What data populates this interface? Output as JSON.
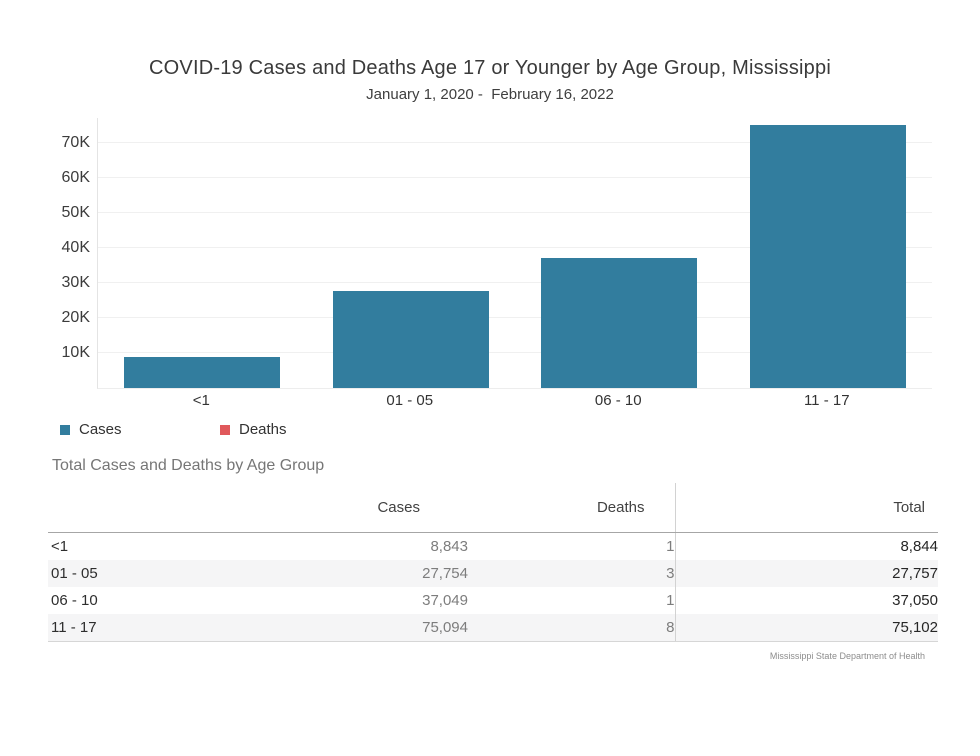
{
  "chart_data": {
    "type": "bar",
    "title": "COVID-19 Cases and Deaths Age 17 or Younger by Age Group, Mississippi",
    "subtitle": "January 1, 2020 -  February 16, 2022",
    "categories": [
      "<1",
      "01 - 05",
      "06 - 10",
      "11 - 17"
    ],
    "series": [
      {
        "name": "Cases",
        "color": "#327D9E",
        "values": [
          8843,
          27754,
          37049,
          75094
        ]
      },
      {
        "name": "Deaths",
        "color": "#E0585B",
        "values": [
          1,
          3,
          1,
          8
        ]
      }
    ],
    "stacked": true,
    "xlabel": "",
    "ylabel": "",
    "ylim": [
      0,
      77000
    ],
    "yticks": [
      {
        "value": 10000,
        "label": "10K"
      },
      {
        "value": 20000,
        "label": "20K"
      },
      {
        "value": 30000,
        "label": "30K"
      },
      {
        "value": 40000,
        "label": "40K"
      },
      {
        "value": 50000,
        "label": "50K"
      },
      {
        "value": 60000,
        "label": "60K"
      },
      {
        "value": 70000,
        "label": "70K"
      }
    ],
    "grid": true,
    "legend_position": "bottom-left"
  },
  "legend": {
    "items": [
      {
        "label": "Cases",
        "color": "#327D9E"
      },
      {
        "label": "Deaths",
        "color": "#E0585B"
      }
    ]
  },
  "table": {
    "heading": "Total Cases and Deaths by Age Group",
    "columns": [
      "",
      "Cases",
      "Deaths",
      "Total"
    ],
    "rows": [
      {
        "label": "<1",
        "cases": "8,843",
        "deaths": "1",
        "total": "8,844"
      },
      {
        "label": "01 - 05",
        "cases": "27,754",
        "deaths": "3",
        "total": "27,757"
      },
      {
        "label": "06 - 10",
        "cases": "37,049",
        "deaths": "1",
        "total": "37,050"
      },
      {
        "label": "11 - 17",
        "cases": "75,094",
        "deaths": "8",
        "total": "75,102"
      }
    ]
  },
  "footer": {
    "credit": "Mississippi State Department of Health"
  }
}
